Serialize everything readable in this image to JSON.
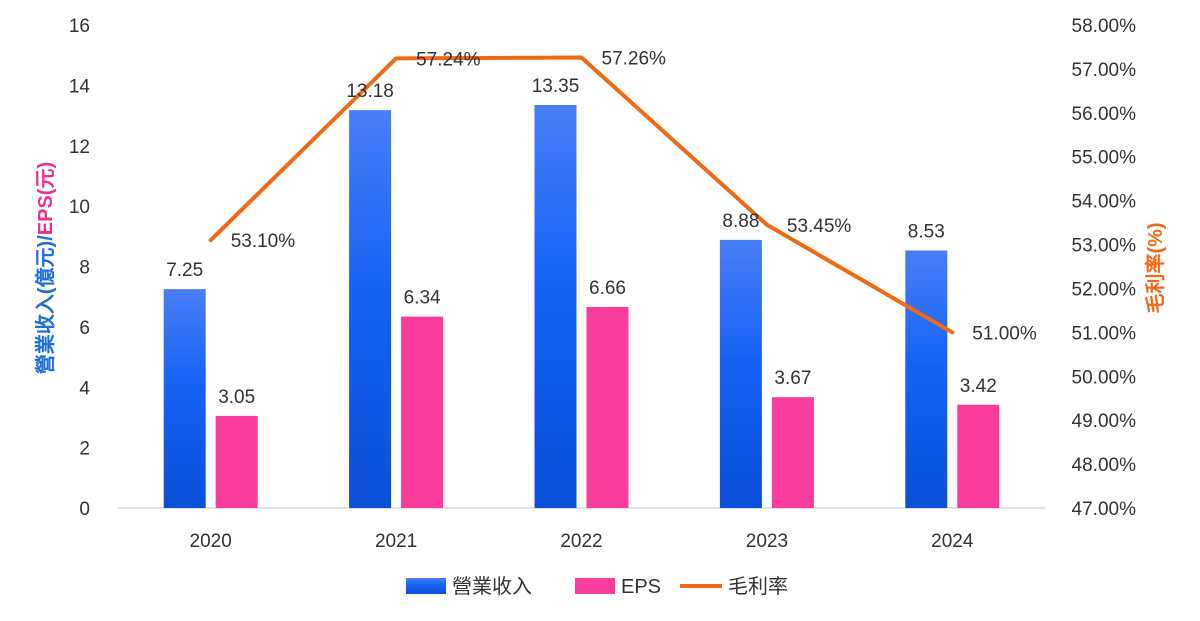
{
  "colors": {
    "revenue_top": "#4a7ef7",
    "revenue_bottom": "#0a4fd8",
    "eps": "#fa3c9a",
    "margin": "#f06a14",
    "left_title_blue": "#1f6fd6",
    "left_title_pink": "#ee2f8c",
    "right_title": "#f06a14",
    "grid": "#d9d9d9"
  },
  "chart_data": {
    "type": "bar",
    "categories": [
      "2020",
      "2021",
      "2022",
      "2023",
      "2024"
    ],
    "series": [
      {
        "name": "營業收入",
        "type": "bar",
        "axis": "left",
        "values": [
          7.25,
          13.18,
          13.35,
          8.88,
          8.53
        ],
        "labels": [
          "7.25",
          "13.18",
          "13.35",
          "8.88",
          "8.53"
        ]
      },
      {
        "name": "EPS",
        "type": "bar",
        "axis": "left",
        "values": [
          3.05,
          6.34,
          6.66,
          3.67,
          3.42
        ],
        "labels": [
          "3.05",
          "6.34",
          "6.66",
          "3.67",
          "3.42"
        ]
      },
      {
        "name": "毛利率",
        "type": "line",
        "axis": "right",
        "values": [
          53.1,
          57.24,
          57.26,
          53.45,
          51.0
        ],
        "labels": [
          "53.10%",
          "57.24%",
          "57.26%",
          "53.45%",
          "51.00%"
        ]
      }
    ],
    "left_axis": {
      "range": [
        0,
        16
      ],
      "ticks": [
        "0",
        "2",
        "4",
        "6",
        "8",
        "10",
        "12",
        "14",
        "16"
      ],
      "title_parts": [
        {
          "text": "營業收入(億元)",
          "color_key": "left_title_blue"
        },
        {
          "text": "/",
          "color_key": "left_title_blue"
        },
        {
          "text": "EPS(元)",
          "color_key": "left_title_pink"
        }
      ]
    },
    "right_axis": {
      "range": [
        47,
        58
      ],
      "ticks": [
        "47.00%",
        "48.00%",
        "49.00%",
        "50.00%",
        "51.00%",
        "52.00%",
        "53.00%",
        "54.00%",
        "55.00%",
        "56.00%",
        "57.00%",
        "58.00%"
      ],
      "title": "毛利率(%)"
    },
    "legend": {
      "position": "bottom",
      "items": [
        "營業收入",
        "EPS",
        "毛利率"
      ]
    },
    "grid": false
  }
}
